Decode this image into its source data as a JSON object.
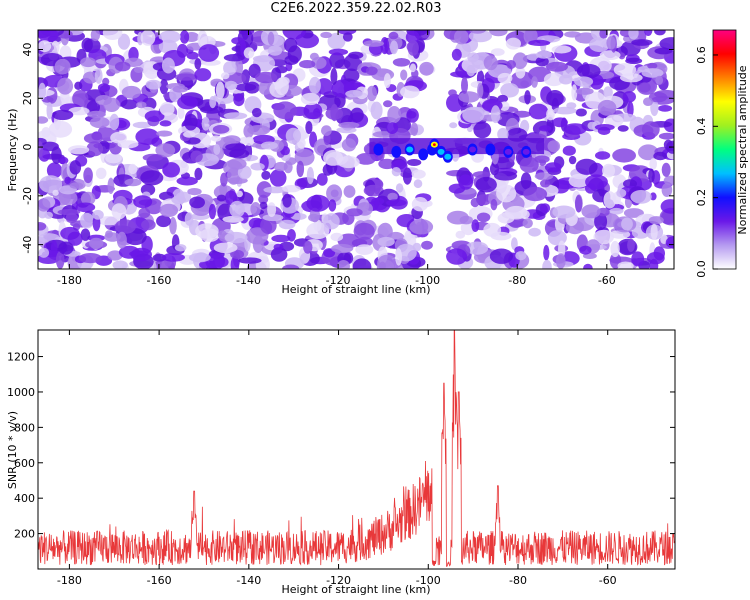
{
  "title": "C2E6.2022.359.22.02.R03",
  "chart_data": [
    {
      "type": "heatmap",
      "xlabel": "Height of straight line (km)",
      "ylabel": "Frequency (Hz)",
      "xlim": [
        -187,
        -45
      ],
      "ylim": [
        -50,
        48
      ],
      "x_ticks": [
        -180,
        -160,
        -140,
        -120,
        -100,
        -80,
        -60
      ],
      "y_ticks": [
        -40,
        -20,
        0,
        20,
        40
      ],
      "colorbar": {
        "label": "Normalized spectral amplitude",
        "range": [
          0.0,
          0.67
        ],
        "ticks": [
          0.0,
          0.2,
          0.4,
          0.6
        ],
        "colors": [
          "#ffffff",
          "#b59af0",
          "#6a18e8",
          "#1010ff",
          "#00c0ff",
          "#00ff80",
          "#a0f020",
          "#ffff00",
          "#ff8000",
          "#ff0000",
          "#ff0080"
        ]
      },
      "gap_x_range": [
        -100,
        -94.5
      ],
      "feature": {
        "frequency": 0,
        "x_range": [
          -113,
          -74
        ],
        "blobs": [
          {
            "x": -111,
            "y": -1,
            "v": 0.28
          },
          {
            "x": -107,
            "y": -2,
            "v": 0.3
          },
          {
            "x": -104,
            "y": -1,
            "v": 0.34
          },
          {
            "x": -101,
            "y": -3,
            "v": 0.26
          },
          {
            "x": -99,
            "y": -1,
            "v": 0.3
          },
          {
            "x": -97,
            "y": -2,
            "v": 0.4
          },
          {
            "x": -95.5,
            "y": -4,
            "v": 0.36
          },
          {
            "x": -98.5,
            "y": 1,
            "v": 0.62
          },
          {
            "x": -90,
            "y": -1,
            "v": 0.22
          },
          {
            "x": -86,
            "y": -1,
            "v": 0.3
          },
          {
            "x": -82,
            "y": -2,
            "v": 0.22
          },
          {
            "x": -78,
            "y": -2,
            "v": 0.2
          }
        ]
      }
    },
    {
      "type": "line",
      "xlabel": "Height of straight line (km)",
      "ylabel": "SNR (10 * v/v)",
      "xlim": [
        -187,
        -45
      ],
      "ylim": [
        0,
        1350
      ],
      "x_ticks": [
        -180,
        -160,
        -140,
        -120,
        -100,
        -80,
        -60
      ],
      "y_ticks": [
        200,
        400,
        600,
        800,
        1000,
        1200
      ],
      "color": "#e8383a",
      "baseline_mean": 120,
      "peaks": [
        {
          "x": -152.2,
          "y": 440
        },
        {
          "x": -84.5,
          "y": 470
        },
        {
          "x": -96.5,
          "y": 1050
        },
        {
          "x": -94.2,
          "y": 1350
        },
        {
          "x": -93.2,
          "y": 1000
        }
      ],
      "quiet_x_range": [
        -99.2,
        -98.2
      ]
    }
  ]
}
